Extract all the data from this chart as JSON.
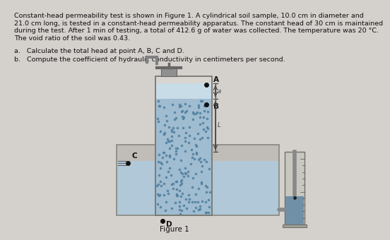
{
  "bg_color": "#d4d0cc",
  "text_color": "#111111",
  "title_line1": "Constant-head permeability test is shown in Figure 1. A cylindrical soil sample, 10.0 cm in diameter and",
  "title_line2": "21.0 cm long, is tested in a constant-head permeability apparatus. The constant head of 30 cm is maintained",
  "title_line3": "during the test. After 1 min of testing, a total of 412.6 g of water was collected. The temperature was 20 °C.",
  "title_line4": "The void ratio of the soil was 0.43.",
  "q_a": "a.   Calculate the total head at point A, B, C and D.",
  "q_b": "b.   Compute the coefficient of hydraulic conductivity in centimeters per second.",
  "fig_label": "Figure 1",
  "soil_color": "#a0bcd0",
  "soil_dot_color": "#5080a0",
  "water_top_color": "#c8dce8",
  "outer_tank_face": "#c0bcb8",
  "outer_tank_edge": "#888880",
  "inner_col_edge": "#777770",
  "tap_color": "#909090",
  "meas_line_color": "#444444",
  "cyl_body_color": "#c8c8c0",
  "cyl_water_color": "#7090a8",
  "pipe_color": "#888888",
  "pt_color": "#111111"
}
